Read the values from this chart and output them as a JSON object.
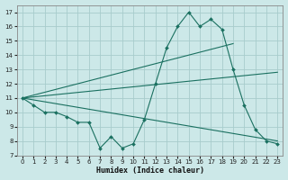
{
  "xlabel": "Humidex (Indice chaleur)",
  "bg_color": "#cce8e8",
  "grid_color": "#a8cccc",
  "line_color": "#1a7060",
  "xlim": [
    -0.5,
    23.5
  ],
  "ylim": [
    7,
    17.5
  ],
  "xticks": [
    0,
    1,
    2,
    3,
    4,
    5,
    6,
    7,
    8,
    9,
    10,
    11,
    12,
    13,
    14,
    15,
    16,
    17,
    18,
    19,
    20,
    21,
    22,
    23
  ],
  "yticks": [
    7,
    8,
    9,
    10,
    11,
    12,
    13,
    14,
    15,
    16,
    17
  ],
  "zigzag_x": [
    0,
    1,
    2,
    3,
    4,
    5,
    6,
    7,
    8,
    9,
    10,
    11,
    12,
    13,
    14,
    15,
    16,
    17,
    18,
    19,
    20,
    21,
    22,
    23
  ],
  "zigzag_y": [
    11.0,
    10.5,
    10.0,
    10.0,
    9.7,
    9.3,
    9.3,
    7.5,
    8.3,
    7.5,
    7.8,
    9.5,
    12.0,
    14.5,
    16.0,
    17.0,
    16.0,
    16.5,
    15.8,
    13.0,
    10.5,
    8.8,
    8.0,
    7.8
  ],
  "line2_x": [
    0,
    19
  ],
  "line2_y": [
    11.0,
    14.8
  ],
  "line3_x": [
    0,
    23
  ],
  "line3_y": [
    11.0,
    12.8
  ],
  "line4_x": [
    0,
    23
  ],
  "line4_y": [
    11.0,
    8.0
  ]
}
